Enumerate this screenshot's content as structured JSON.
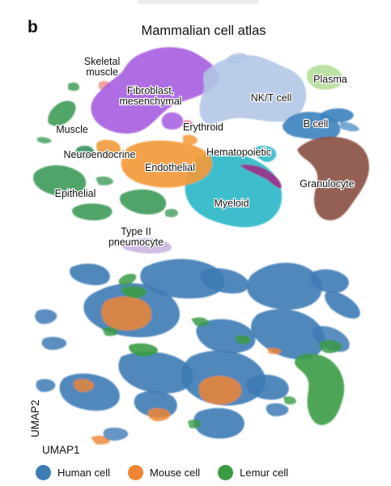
{
  "figure": {
    "panel_letter": "b",
    "title": "Mammalian cell atlas"
  },
  "top_labels": [
    {
      "key": "skeletal",
      "lines": [
        "Skeletal",
        "muscle"
      ]
    },
    {
      "key": "fibroblast",
      "lines": [
        "Fibroblast,",
        "mesenchymal"
      ]
    },
    {
      "key": "nkt",
      "lines": [
        "NK/T cell"
      ]
    },
    {
      "key": "plasma",
      "lines": [
        "Plasma"
      ]
    },
    {
      "key": "muscle",
      "lines": [
        "Muscle"
      ]
    },
    {
      "key": "erythroid",
      "lines": [
        "Erythroid"
      ]
    },
    {
      "key": "bcell",
      "lines": [
        "B cell"
      ]
    },
    {
      "key": "neuroendocrine",
      "lines": [
        "Neuroendocrine"
      ]
    },
    {
      "key": "hematopoietic",
      "lines": [
        "Hematopoietic"
      ]
    },
    {
      "key": "endothelial",
      "lines": [
        "Endothelial"
      ]
    },
    {
      "key": "epithelial",
      "lines": [
        "Epithelial"
      ]
    },
    {
      "key": "granulocyte",
      "lines": [
        "Granulocyte"
      ]
    },
    {
      "key": "myeloid",
      "lines": [
        "Myeloid"
      ]
    },
    {
      "key": "type2",
      "lines": [
        "Type II",
        "pneumocyte"
      ]
    }
  ],
  "axes": {
    "x_label": "UMAP1",
    "y_label": "UMAP2"
  },
  "legend": [
    {
      "label": "Human cell",
      "color": "#3f7bb5"
    },
    {
      "label": "Mouse cell",
      "color": "#ee8634"
    },
    {
      "label": "Lemur cell",
      "color": "#3a9b45"
    }
  ],
  "colors": {
    "skeletal": "#ee8f8a",
    "fibroblast": "#a55ce0",
    "nkt": "#b3c7e6",
    "plasma": "#b5de9a",
    "muscle": "#3e9b56",
    "erythroid": "#f06a9a",
    "bcell": "#3a82bf",
    "neuroendocrine": "#2e8b57",
    "hematopoietic": "#9d2e8a",
    "endothelial": "#f39a3a",
    "epithelial": "#3d9a5a",
    "granulocyte": "#8b5345",
    "myeloid": "#27b7c7",
    "type2": "#c8b0de",
    "human": "#3f7bb5",
    "mouse": "#ee8634",
    "lemur": "#3a9b45"
  }
}
